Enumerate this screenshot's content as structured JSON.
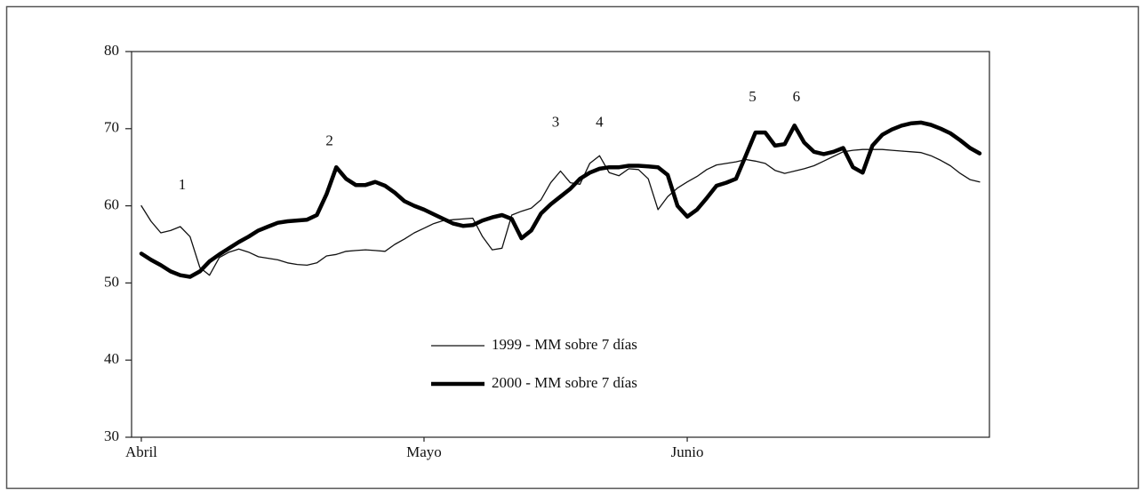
{
  "chart_data": {
    "type": "line",
    "x": [
      1,
      2,
      3,
      4,
      5,
      6,
      7,
      8,
      9,
      10,
      11,
      12,
      13,
      14,
      15,
      16,
      17,
      18,
      19,
      20,
      21,
      22,
      23,
      24,
      25,
      26,
      27,
      28,
      29,
      30,
      31,
      32,
      33,
      34,
      35,
      36,
      37,
      38,
      39,
      40,
      41,
      42,
      43,
      44,
      45,
      46,
      47,
      48,
      49,
      50,
      51,
      52,
      53,
      54,
      55,
      56,
      57,
      58,
      59,
      60,
      61,
      62,
      63,
      64,
      65,
      66,
      67,
      68,
      69,
      70,
      71,
      72,
      73,
      74,
      75,
      76,
      77,
      78,
      79,
      80,
      81,
      82,
      83,
      84,
      85,
      86,
      87
    ],
    "xlim": [
      0,
      88
    ],
    "xticks": [
      {
        "value": 1,
        "label": "Abril"
      },
      {
        "value": 30,
        "label": "Mayo"
      },
      {
        "value": 57,
        "label": "Junio"
      }
    ],
    "ylim": [
      30,
      80
    ],
    "yticks": [
      30,
      40,
      50,
      60,
      70,
      80
    ],
    "legend": "center",
    "series": [
      {
        "name": "1999 - MM sobre 7 días",
        "color": "#111111",
        "width": 1.3,
        "values": [
          60,
          58,
          56.5,
          56.8,
          57.3,
          56,
          52,
          51,
          53.3,
          54,
          54.4,
          54,
          53.4,
          53.2,
          53,
          52.6,
          52.4,
          52.3,
          52.6,
          53.5,
          53.7,
          54.1,
          54.2,
          54.3,
          54.2,
          54.1,
          55,
          55.7,
          56.5,
          57.1,
          57.7,
          58.1,
          58.2,
          58.3,
          58.4,
          56,
          54.3,
          54.5,
          58.8,
          59.3,
          59.7,
          60.8,
          63,
          64.5,
          63,
          62.8,
          65.5,
          66.5,
          64.3,
          63.9,
          64.8,
          64.7,
          63.5,
          59.5,
          61.2,
          62.3,
          63.1,
          63.8,
          64.7,
          65.3,
          65.5,
          65.7,
          66,
          65.8,
          65.5,
          64.6,
          64.2,
          64.5,
          64.8,
          65.2,
          65.8,
          66.4,
          67,
          67.2,
          67.3,
          67.3,
          67.3,
          67.2,
          67.1,
          67,
          66.9,
          66.5,
          65.9,
          65.2,
          64.2,
          63.4,
          63.1
        ]
      },
      {
        "name": "2000 - MM sobre 7 días",
        "color": "#000000",
        "width": 4.5,
        "values": [
          53.8,
          53,
          52.3,
          51.5,
          51,
          50.8,
          51.5,
          52.8,
          53.7,
          54.5,
          55.3,
          56,
          56.8,
          57.3,
          57.8,
          58,
          58.1,
          58.2,
          58.8,
          61.5,
          65,
          63.5,
          62.7,
          62.7,
          63.1,
          62.6,
          61.7,
          60.6,
          60,
          59.5,
          58.9,
          58.3,
          57.7,
          57.4,
          57.5,
          58.1,
          58.5,
          58.8,
          58.3,
          55.8,
          56.8,
          59,
          60.2,
          61.2,
          62.2,
          63.5,
          64.3,
          64.8,
          65,
          65,
          65.2,
          65.2,
          65.1,
          65,
          64,
          60,
          58.6,
          59.5,
          61,
          62.6,
          63,
          63.5,
          66.5,
          69.5,
          69.5,
          67.8,
          68,
          70.4,
          68.2,
          67,
          66.7,
          67,
          67.5,
          65,
          64.3,
          67.8,
          69.2,
          69.9,
          70.4,
          70.7,
          70.8,
          70.5,
          70,
          69.4,
          68.5,
          67.5,
          66.8
        ]
      }
    ],
    "annotations": [
      {
        "text": "1",
        "x": 5.2,
        "y": 62.6
      },
      {
        "text": "2",
        "x": 20.3,
        "y": 68.3
      },
      {
        "text": "3",
        "x": 43.5,
        "y": 70.7
      },
      {
        "text": "4",
        "x": 48,
        "y": 70.7
      },
      {
        "text": "5",
        "x": 63.7,
        "y": 74
      },
      {
        "text": "6",
        "x": 68.2,
        "y": 74
      }
    ]
  }
}
